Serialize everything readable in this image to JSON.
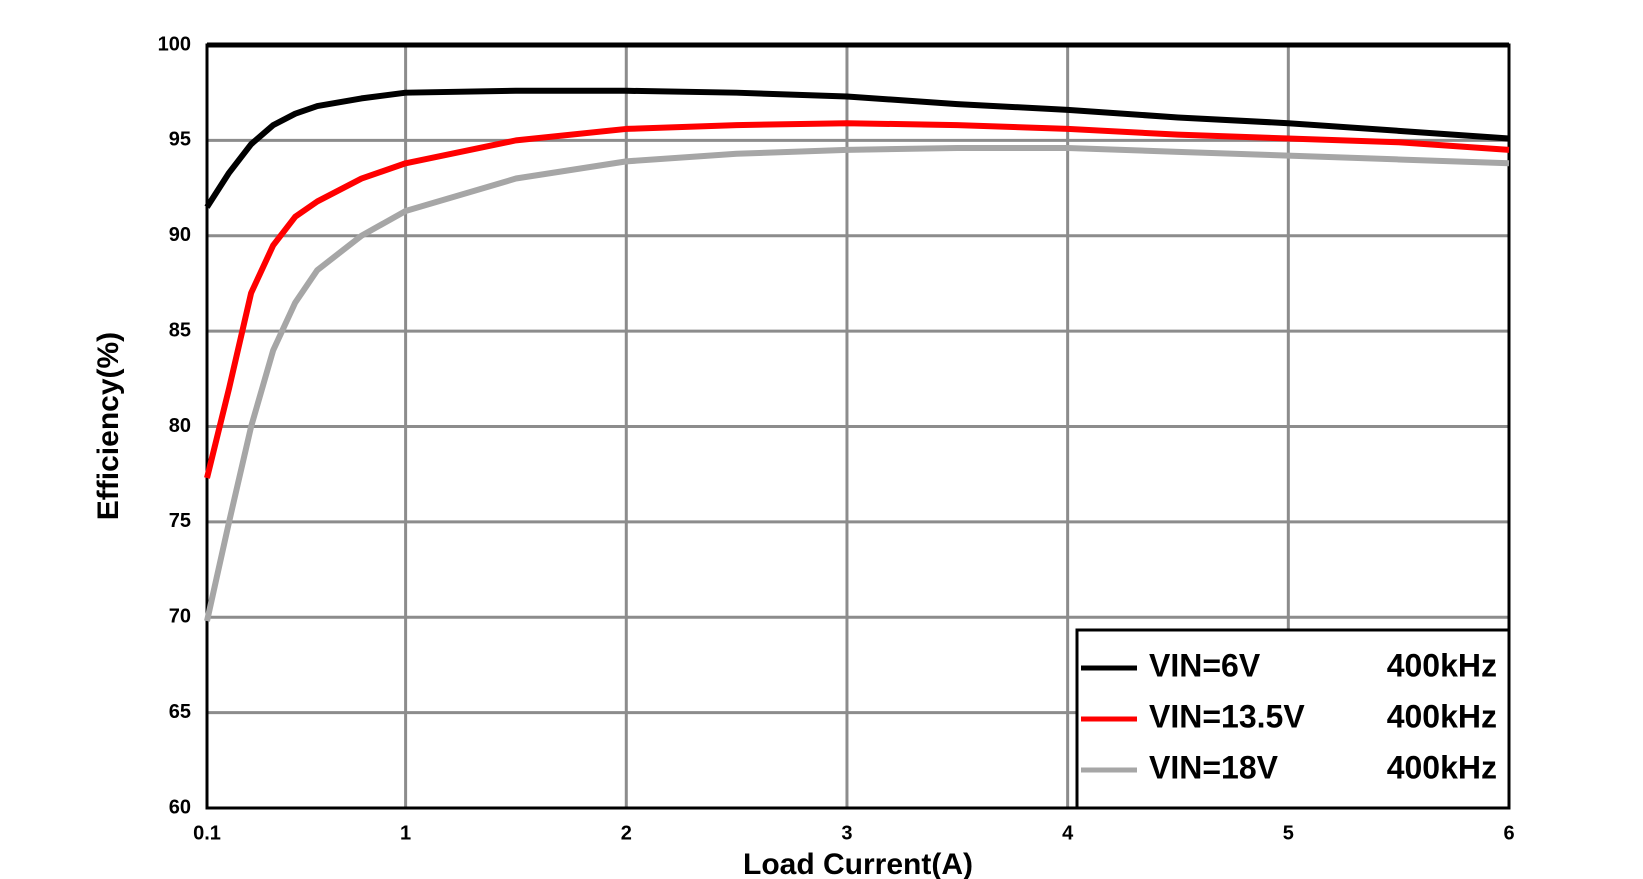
{
  "chart_data": {
    "type": "line",
    "x_label": "Load Current(A)",
    "y_label": "Efficiency(%)",
    "x": [
      0.1,
      0.2,
      0.3,
      0.4,
      0.5,
      0.6,
      0.8,
      1,
      1.5,
      2,
      2.5,
      3,
      3.5,
      4,
      4.5,
      5,
      5.5,
      6
    ],
    "series": [
      {
        "name": "VIN=6V",
        "frequency": "400kHz",
        "color": "#000000",
        "values": [
          91.5,
          93.3,
          94.8,
          95.8,
          96.4,
          96.8,
          97.2,
          97.5,
          97.6,
          97.6,
          97.5,
          97.3,
          96.9,
          96.6,
          96.2,
          95.9,
          95.5,
          95.1
        ]
      },
      {
        "name": "VIN=13.5V",
        "frequency": "400kHz",
        "color": "#ff0000",
        "values": [
          77.3,
          82,
          87,
          89.5,
          91,
          91.8,
          93,
          93.8,
          95,
          95.6,
          95.8,
          95.9,
          95.8,
          95.6,
          95.3,
          95.1,
          94.9,
          94.5
        ]
      },
      {
        "name": "VIN=18V",
        "frequency": "400kHz",
        "color": "#a6a6a6",
        "values": [
          69.8,
          75,
          80,
          84,
          86.5,
          88.2,
          90,
          91.3,
          93,
          93.9,
          94.3,
          94.5,
          94.6,
          94.6,
          94.4,
          94.2,
          94,
          93.8
        ]
      }
    ],
    "xlim": [
      0.1,
      6
    ],
    "xticks": [
      0.1,
      1,
      2,
      3,
      4,
      5,
      6
    ],
    "ylim": [
      60,
      100
    ],
    "yticks": [
      60,
      65,
      70,
      75,
      80,
      85,
      90,
      95,
      100
    ],
    "grid": true,
    "legend": "lower right"
  }
}
